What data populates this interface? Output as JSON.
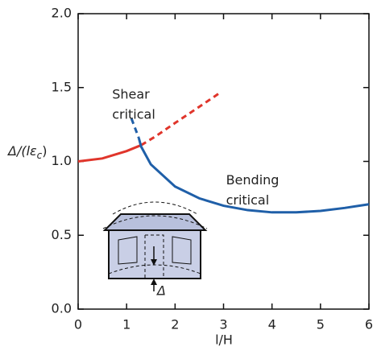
{
  "chart_data": {
    "type": "line",
    "xlabel": "l/H",
    "ylabel": {
      "main": "Δ/(lε",
      "sub": "c",
      "close": ")"
    },
    "xlim": [
      0,
      6
    ],
    "xticks": [
      0,
      1,
      2,
      3,
      4,
      5,
      6
    ],
    "ylim": [
      0,
      2
    ],
    "yticks": [
      {
        "value": 0,
        "label": "0.0"
      },
      0.5,
      {
        "value": 1,
        "label": "1.0"
      },
      1.5,
      {
        "value": 2,
        "label": "2.0"
      }
    ],
    "series": [
      {
        "color": "#e0352b",
        "style": "solid",
        "x": [
          0,
          0.5,
          1.0,
          1.3
        ],
        "values": [
          1.0,
          1.02,
          1.07,
          1.11
        ]
      },
      {
        "color": "#e0352b",
        "style": "dashed",
        "x": [
          1.3,
          1.6,
          2.0,
          2.5,
          2.95
        ],
        "values": [
          1.11,
          1.17,
          1.26,
          1.37,
          1.47
        ]
      },
      {
        "color": "#1f5fa8",
        "style": "dashed",
        "x": [
          1.1,
          1.25
        ],
        "values": [
          1.29,
          1.16
        ]
      },
      {
        "color": "#1f5fa8",
        "style": "solid",
        "x": [
          1.25,
          1.3,
          1.5,
          2,
          2.5,
          3,
          3.5,
          4,
          4.5,
          5,
          5.5,
          6
        ],
        "values": [
          1.16,
          1.1,
          0.98,
          0.83,
          0.75,
          0.7,
          0.67,
          0.655,
          0.655,
          0.665,
          0.685,
          0.71
        ]
      }
    ],
    "annotations": [
      {
        "lines": [
          "Shear",
          "critical"
        ],
        "x": 1.2,
        "y": 1.45
      },
      {
        "lines": [
          "Bending",
          "critical"
        ],
        "x": 3.55,
        "y": 0.87
      }
    ],
    "inset_label": "Δ"
  }
}
